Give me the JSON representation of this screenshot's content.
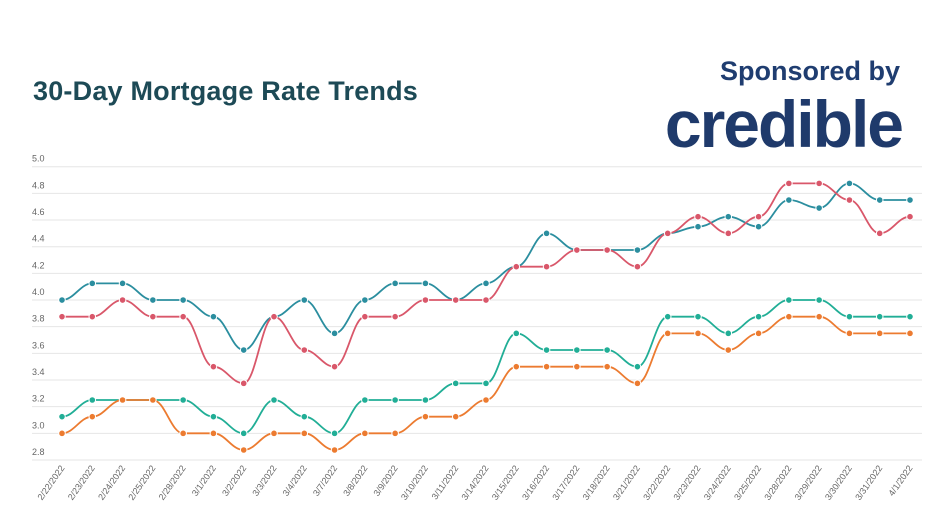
{
  "header": {
    "title": "30-Day Mortgage Rate Trends",
    "sponsor_label": "Sponsored by",
    "brand": "credible"
  },
  "chart_data": {
    "type": "line",
    "title": "30-Day Mortgage Rate Trends",
    "xlabel": "",
    "ylabel": "",
    "ylim": [
      2.8,
      5.0
    ],
    "yticks": [
      "5.0",
      "4.8",
      "4.6",
      "4.4",
      "4.2",
      "4.0",
      "3.8",
      "3.6",
      "3.4",
      "3.2",
      "3.0",
      "2.8"
    ],
    "grid": true,
    "legend": "none",
    "categories": [
      "2/22/2022",
      "2/23/2022",
      "2/24/2022",
      "2/25/2022",
      "2/28/2022",
      "3/1/2022",
      "3/2/2022",
      "3/3/2022",
      "3/4/2022",
      "3/7/2022",
      "3/8/2022",
      "3/9/2022",
      "3/10/2022",
      "3/11/2022",
      "3/14/2022",
      "3/15/2022",
      "3/16/2022",
      "3/17/2022",
      "3/18/2022",
      "3/21/2022",
      "3/22/2022",
      "3/23/2022",
      "3/24/2022",
      "3/25/2022",
      "3/28/2022",
      "3/29/2022",
      "3/30/2022",
      "3/31/2022",
      "4/1/2022"
    ],
    "series": [
      {
        "color": "#2b8e9f",
        "values": [
          4.0,
          4.125,
          4.125,
          4.0,
          4.0,
          3.875,
          3.625,
          3.875,
          4.0,
          3.75,
          4.0,
          4.125,
          4.125,
          4.0,
          4.125,
          4.25,
          4.5,
          4.375,
          4.375,
          4.375,
          4.5,
          4.55,
          4.625,
          4.55,
          4.75,
          4.69,
          4.875,
          4.75,
          4.75
        ]
      },
      {
        "color": "#d9576a",
        "values": [
          3.875,
          3.875,
          4.0,
          3.875,
          3.875,
          3.5,
          3.375,
          3.875,
          3.625,
          3.5,
          3.875,
          3.875,
          4.0,
          4.0,
          4.0,
          4.25,
          4.25,
          4.375,
          4.375,
          4.25,
          4.5,
          4.625,
          4.5,
          4.625,
          4.875,
          4.875,
          4.75,
          4.5,
          4.625
        ]
      },
      {
        "color": "#21ae96",
        "values": [
          3.125,
          3.25,
          3.25,
          3.25,
          3.25,
          3.125,
          3.0,
          3.25,
          3.125,
          3.0,
          3.25,
          3.25,
          3.25,
          3.375,
          3.375,
          3.75,
          3.625,
          3.625,
          3.625,
          3.5,
          3.875,
          3.875,
          3.75,
          3.875,
          4.0,
          4.0,
          3.875,
          3.875,
          3.875
        ]
      },
      {
        "color": "#ec7b30",
        "values": [
          3.0,
          3.125,
          3.25,
          3.25,
          3.0,
          3.0,
          2.875,
          3.0,
          3.0,
          2.875,
          3.0,
          3.0,
          3.125,
          3.125,
          3.25,
          3.5,
          3.5,
          3.5,
          3.5,
          3.375,
          3.75,
          3.75,
          3.625,
          3.75,
          3.875,
          3.875,
          3.75,
          3.75,
          3.75
        ]
      }
    ]
  }
}
